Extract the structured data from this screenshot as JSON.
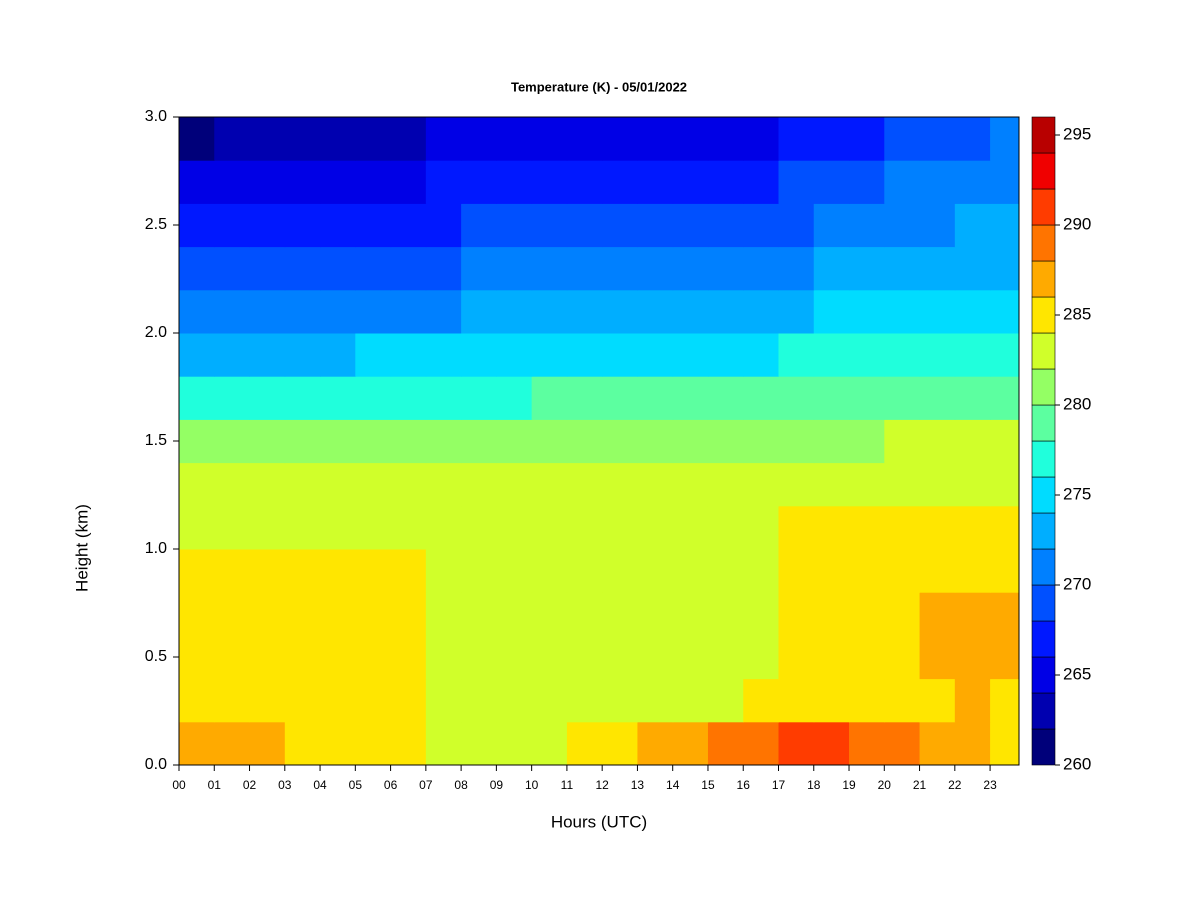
{
  "chart_data": {
    "type": "heatmap",
    "title": "Temperature (K) - 05/01/2022",
    "xlabel": "Hours (UTC)",
    "ylabel": "Height (km)",
    "x": [
      0,
      1,
      2,
      3,
      4,
      5,
      6,
      7,
      8,
      9,
      10,
      11,
      12,
      13,
      14,
      15,
      16,
      17,
      18,
      19,
      20,
      21,
      22,
      23
    ],
    "y": [
      0.1,
      0.3,
      0.5,
      0.7,
      0.9,
      1.1,
      1.3,
      1.5,
      1.7,
      1.9,
      2.1,
      2.3,
      2.5,
      2.7,
      2.9
    ],
    "values": [
      [
        286.5,
        286.5,
        286,
        285,
        285,
        285,
        284.5,
        283.5,
        283,
        283,
        283,
        284,
        285,
        286,
        287,
        288,
        289,
        290,
        290,
        289,
        288,
        287,
        286,
        285.5
      ],
      [
        285,
        285,
        284.5,
        284.5,
        284.5,
        284.5,
        284.5,
        283,
        283,
        283,
        282.5,
        282,
        282,
        282.5,
        283,
        283.5,
        284,
        285,
        285.5,
        285.5,
        285.5,
        285.5,
        286,
        285.5
      ],
      [
        285,
        285,
        285,
        285,
        285,
        285,
        285,
        283,
        283,
        283,
        283,
        282.5,
        282.5,
        283,
        283,
        283.5,
        283.5,
        285,
        285,
        285,
        285.5,
        286,
        287,
        287
      ],
      [
        285,
        285,
        285,
        285,
        285,
        285,
        284.5,
        283,
        283,
        283,
        283,
        283,
        283,
        283,
        283,
        283,
        283.5,
        285,
        285,
        285,
        285.5,
        286,
        286.5,
        286.5
      ],
      [
        284.5,
        284,
        284,
        284,
        284,
        284,
        284,
        283,
        283,
        283,
        283,
        283,
        283,
        283,
        283,
        283,
        283,
        285,
        285,
        285,
        285,
        285.5,
        285.5,
        285
      ],
      [
        283,
        283,
        283,
        283,
        283,
        283,
        283,
        283,
        283,
        283,
        283,
        283,
        283,
        283,
        283,
        283,
        283,
        284,
        285,
        285,
        285,
        285,
        285,
        284.5
      ],
      [
        282.5,
        282.5,
        282.5,
        282.5,
        282.5,
        282.5,
        282.5,
        282.5,
        282.5,
        282.5,
        282.5,
        282.5,
        282.5,
        282.5,
        282.5,
        282.5,
        282.5,
        283,
        283,
        283,
        283,
        283,
        283,
        283
      ],
      [
        280.5,
        280.5,
        280.5,
        280.5,
        280.5,
        280.5,
        280.5,
        280.5,
        280.5,
        280.5,
        281,
        281,
        281,
        281,
        281,
        281,
        281,
        281.5,
        281.5,
        281.5,
        282,
        282,
        282,
        282
      ],
      [
        277,
        277,
        277,
        277,
        277,
        277.5,
        277.5,
        277.5,
        277.5,
        277.5,
        278,
        278,
        278,
        278,
        278,
        278,
        278,
        279,
        279,
        279,
        279,
        279,
        279.5,
        279.5
      ],
      [
        273,
        273,
        273,
        273.5,
        273.5,
        274,
        274,
        274,
        274,
        274,
        274,
        274,
        274,
        274,
        274.5,
        274.5,
        275,
        276,
        276,
        276,
        276,
        276,
        276.5,
        276.5
      ],
      [
        270,
        270,
        270.5,
        271,
        271,
        271,
        271,
        271.5,
        272,
        272,
        272,
        272,
        272,
        272,
        272,
        272,
        272.5,
        273.5,
        274,
        274,
        274,
        274,
        274.5,
        274.5
      ],
      [
        268,
        268,
        268.5,
        269,
        269,
        269,
        269,
        269.5,
        270,
        270,
        270,
        270,
        270,
        270,
        270,
        270,
        270.5,
        271.5,
        272,
        272.5,
        272.5,
        273,
        273,
        273
      ],
      [
        266,
        266,
        266.5,
        267,
        267,
        267,
        267,
        267.5,
        268,
        268,
        268,
        268,
        268,
        268,
        268,
        268,
        268.5,
        269.5,
        270,
        270.5,
        271,
        271.5,
        272,
        272
      ],
      [
        264,
        264,
        265,
        265,
        265,
        265,
        265,
        266,
        266,
        266,
        267,
        267,
        267,
        267,
        267,
        267,
        267,
        268,
        269,
        269.5,
        270,
        270.5,
        271,
        271
      ],
      [
        261.5,
        262,
        263,
        263,
        263,
        263,
        263,
        264,
        264,
        264,
        265,
        265,
        265,
        265,
        265,
        265,
        265,
        266,
        267,
        267.5,
        268,
        269,
        269.5,
        270
      ]
    ],
    "xlim": [
      0,
      23.82
    ],
    "ylim": [
      0,
      3
    ],
    "xticks": [
      {
        "value": 0,
        "label": "00"
      },
      {
        "value": 1,
        "label": "01"
      },
      {
        "value": 2,
        "label": "02"
      },
      {
        "value": 3,
        "label": "03"
      },
      {
        "value": 4,
        "label": "04"
      },
      {
        "value": 5,
        "label": "05"
      },
      {
        "value": 6,
        "label": "06"
      },
      {
        "value": 7,
        "label": "07"
      },
      {
        "value": 8,
        "label": "08"
      },
      {
        "value": 9,
        "label": "09"
      },
      10,
      11,
      12,
      13,
      14,
      15,
      16,
      17,
      18,
      19,
      20,
      21,
      22,
      23
    ],
    "yticks": [
      {
        "value": 0,
        "label": "0.0"
      },
      0.5,
      {
        "value": 1,
        "label": "1.0"
      },
      1.5,
      {
        "value": 2,
        "label": "2.0"
      },
      2.5,
      {
        "value": 3,
        "label": "3.0"
      }
    ],
    "levels": [
      260,
      262,
      264,
      266,
      268,
      270,
      272,
      274,
      276,
      278,
      280,
      282,
      284,
      286,
      288,
      290,
      292,
      294,
      296
    ],
    "colors": [
      "#00007a",
      "#0000b0",
      "#0000e6",
      "#0018ff",
      "#0050ff",
      "#0080ff",
      "#00aeff",
      "#00dcff",
      "#20ffdc",
      "#5cffa0",
      "#94ff64",
      "#d0ff2a",
      "#ffe600",
      "#ffaa00",
      "#ff7400",
      "#ff3c00",
      "#f00000",
      "#b80000"
    ],
    "cticks": [
      260,
      265,
      270,
      275,
      280,
      285,
      290,
      295
    ]
  }
}
